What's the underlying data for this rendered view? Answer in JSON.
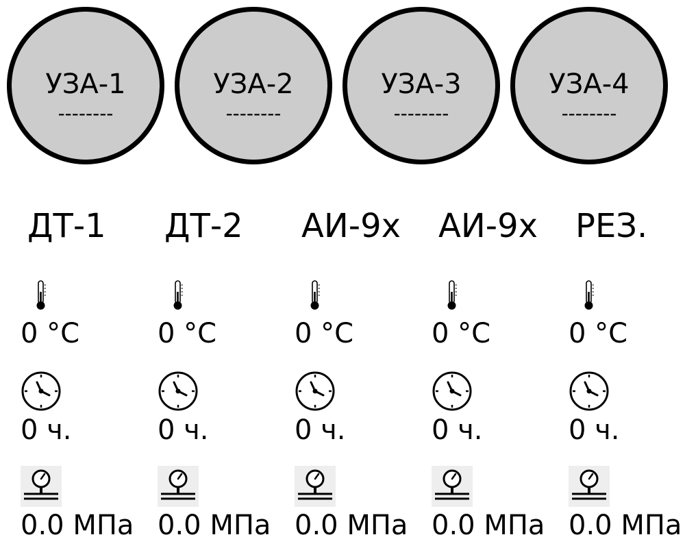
{
  "circles": [
    {
      "label": "УЗА-1",
      "value": "--------"
    },
    {
      "label": "УЗА-2",
      "value": "--------"
    },
    {
      "label": "УЗА-3",
      "value": "--------"
    },
    {
      "label": "УЗА-4",
      "value": "--------"
    }
  ],
  "units": [
    {
      "name": "ДТ-1",
      "temperature": "0 °С",
      "hours": "0 ч.",
      "pressure": "0.0 МПа"
    },
    {
      "name": "ДТ-2",
      "temperature": "0 °С",
      "hours": "0 ч.",
      "pressure": "0.0 МПа"
    },
    {
      "name": "АИ-9х",
      "temperature": "0 °С",
      "hours": "0 ч.",
      "pressure": "0.0 МПа"
    },
    {
      "name": "АИ-9х",
      "temperature": "0 °С",
      "hours": "0 ч.",
      "pressure": "0.0 МПа"
    },
    {
      "name": "РЕЗ.",
      "temperature": "0 °С",
      "hours": "0 ч.",
      "pressure": "0.0 МПа"
    }
  ],
  "icons": {
    "temperature": "thermometer-icon",
    "hours": "clock-icon",
    "pressure": "pressure-gauge-icon"
  },
  "colors": {
    "circle_fill": "#cccccc",
    "circle_border": "#000000",
    "text": "#000000",
    "gauge_background": "#eeeeee"
  }
}
